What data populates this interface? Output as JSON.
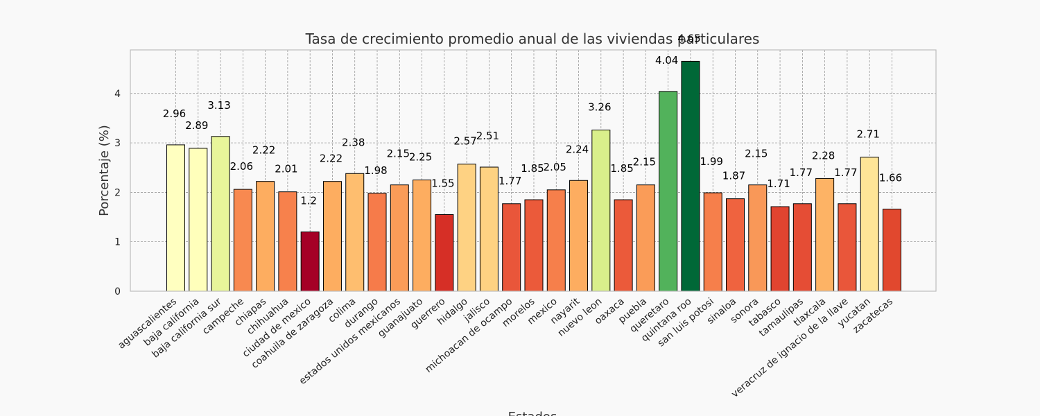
{
  "chart_data": {
    "type": "bar",
    "title": "Tasa de crecimiento promedio anual de las viviendas particulares",
    "xlabel": "Estados",
    "ylabel": "Porcentaje (%)",
    "ylim": [
      0,
      4.88
    ],
    "yticks": [
      0,
      1,
      2,
      3,
      4
    ],
    "grid": true,
    "categories": [
      "aguascalientes",
      "baja california",
      "baja california sur",
      "campeche",
      "chiapas",
      "chihuahua",
      "ciudad de mexico",
      "coahuila de zaragoza",
      "colima",
      "durango",
      "estados unidos mexicanos",
      "guanajuato",
      "guerrero",
      "hidalgo",
      "jalisco",
      "michoacan de ocampo",
      "morelos",
      "mexico",
      "nayarit",
      "nuevo leon",
      "oaxaca",
      "puebla",
      "queretaro",
      "quintana roo",
      "san luis potosi",
      "sinaloa",
      "sonora",
      "tabasco",
      "tamaulipas",
      "tlaxcala",
      "veracruz de ignacio de la llave",
      "yucatan",
      "zacatecas"
    ],
    "values": [
      2.96,
      2.89,
      3.13,
      2.06,
      2.22,
      2.01,
      1.2,
      2.22,
      2.38,
      1.98,
      2.15,
      2.25,
      1.55,
      2.57,
      2.51,
      1.77,
      1.85,
      2.05,
      2.24,
      3.26,
      1.85,
      2.15,
      4.04,
      4.65,
      1.99,
      1.87,
      2.15,
      1.71,
      1.77,
      2.28,
      1.77,
      2.71,
      1.66
    ],
    "value_labels": [
      "2.96",
      "2.89",
      "3.13",
      "2.06",
      "2.22",
      "2.01",
      "1.2",
      "2.22",
      "2.38",
      "1.98",
      "2.15",
      "2.25",
      "1.55",
      "2.57",
      "2.51",
      "1.77",
      "1.85",
      "2.05",
      "2.24",
      "3.26",
      "1.85",
      "2.15",
      "4.04",
      "4.65",
      "1.99",
      "1.87",
      "2.15",
      "1.71",
      "1.77",
      "2.28",
      "1.77",
      "2.71",
      "1.66"
    ],
    "colormap": "RdYlGn",
    "colors": [
      "#ffffc0",
      "#ffffbb",
      "#e8f59a",
      "#f88950",
      "#fdad60",
      "#f7814c",
      "#a50026",
      "#fdad60",
      "#febe6f",
      "#f67b4a",
      "#fa9c58",
      "#fdad60",
      "#d62f26",
      "#fed283",
      "#fed282",
      "#e9563a",
      "#eb5a3a",
      "#f67f4b",
      "#fdad60",
      "#d9ef8b",
      "#eb5a3a",
      "#fa9c58",
      "#52b25b",
      "#006837",
      "#f67f4b",
      "#ef633f",
      "#f99858",
      "#e14430",
      "#e54d35",
      "#fdb365",
      "#e9563a",
      "#fee597",
      "#e1482e"
    ]
  }
}
